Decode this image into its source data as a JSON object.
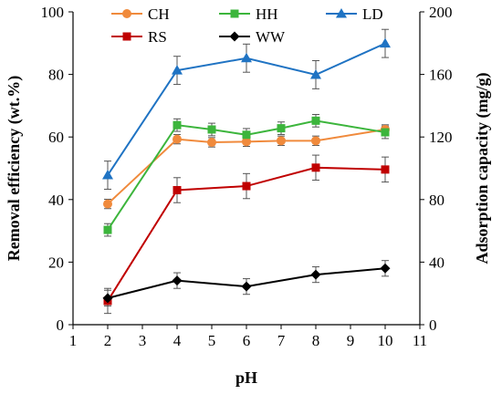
{
  "chart_data": {
    "type": "line",
    "xlabel": "pH",
    "ylabel_left": "Removal efficiency (wt.%)",
    "ylabel_right": "Adsorption capacity (mg/g)",
    "xlim": [
      1,
      11
    ],
    "x_ticks": [
      1,
      2,
      3,
      4,
      5,
      6,
      7,
      8,
      9,
      10,
      11
    ],
    "ylim_left": [
      0,
      100
    ],
    "y_ticks_left": [
      0,
      20,
      40,
      60,
      80,
      100
    ],
    "ylim_right": [
      0,
      200
    ],
    "y_ticks_right": [
      0,
      40,
      80,
      120,
      160,
      200
    ],
    "grid": false,
    "legend_position": "top",
    "series": [
      {
        "name": "CH",
        "color": "#F08A3C",
        "marker": "circle",
        "x": [
          2,
          4,
          5,
          6,
          7,
          8,
          10
        ],
        "y": [
          38.6,
          59.3,
          58.3,
          58.5,
          58.8,
          58.8,
          62.4
        ],
        "err": [
          1.5,
          1.5,
          1.5,
          1.5,
          1.5,
          1.5,
          1.5
        ]
      },
      {
        "name": "HH",
        "color": "#3CB53C",
        "marker": "square",
        "x": [
          2,
          4,
          5,
          6,
          7,
          8,
          10
        ],
        "y": [
          30.3,
          63.8,
          62.4,
          60.7,
          62.8,
          65.2,
          61.5
        ],
        "err": [
          2,
          2,
          2,
          2,
          2,
          2,
          2
        ]
      },
      {
        "name": "LD",
        "color": "#1F73C3",
        "marker": "triangle",
        "x": [
          2,
          4,
          6,
          8,
          10
        ],
        "y": [
          47.8,
          81.3,
          85.2,
          79.9,
          89.9
        ],
        "err": [
          4.5,
          4.5,
          4.5,
          4.5,
          4.5
        ]
      },
      {
        "name": "RS",
        "color": "#C00000",
        "marker": "square",
        "x": [
          2,
          4,
          6,
          8,
          10
        ],
        "y": [
          7.6,
          43.0,
          44.3,
          50.2,
          49.6
        ],
        "err": [
          4,
          4,
          4,
          4,
          4
        ]
      },
      {
        "name": "WW",
        "color": "#000000",
        "marker": "diamond",
        "x": [
          2,
          4,
          6,
          8,
          10
        ],
        "y": [
          8.5,
          14.1,
          12.2,
          16.0,
          18.0
        ],
        "err": [
          2.5,
          2.5,
          2.5,
          2.5,
          2.5
        ]
      }
    ]
  }
}
